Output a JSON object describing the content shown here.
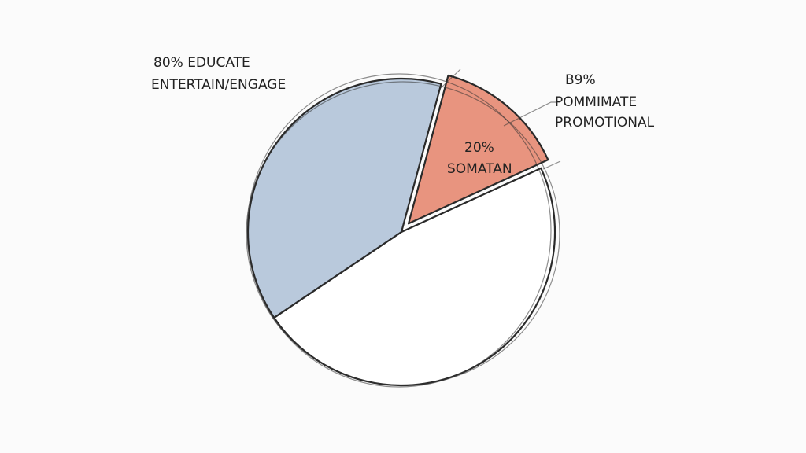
{
  "chart_data": {
    "type": "pie",
    "values": [
      14,
      47.4,
      38.6
    ],
    "colors": [
      "#e8947f",
      "#ffffff",
      "#b9c9dc"
    ],
    "annotations": [
      {
        "lines": [
          "80% EDUCATE",
          "ENTERTAIN/ENGAGE"
        ]
      },
      {
        "lines": [
          "B9%",
          "POMMIMATE",
          "PROMOTIONAL"
        ]
      },
      {
        "lines": [
          "20%",
          "SOMATAN"
        ]
      }
    ]
  }
}
